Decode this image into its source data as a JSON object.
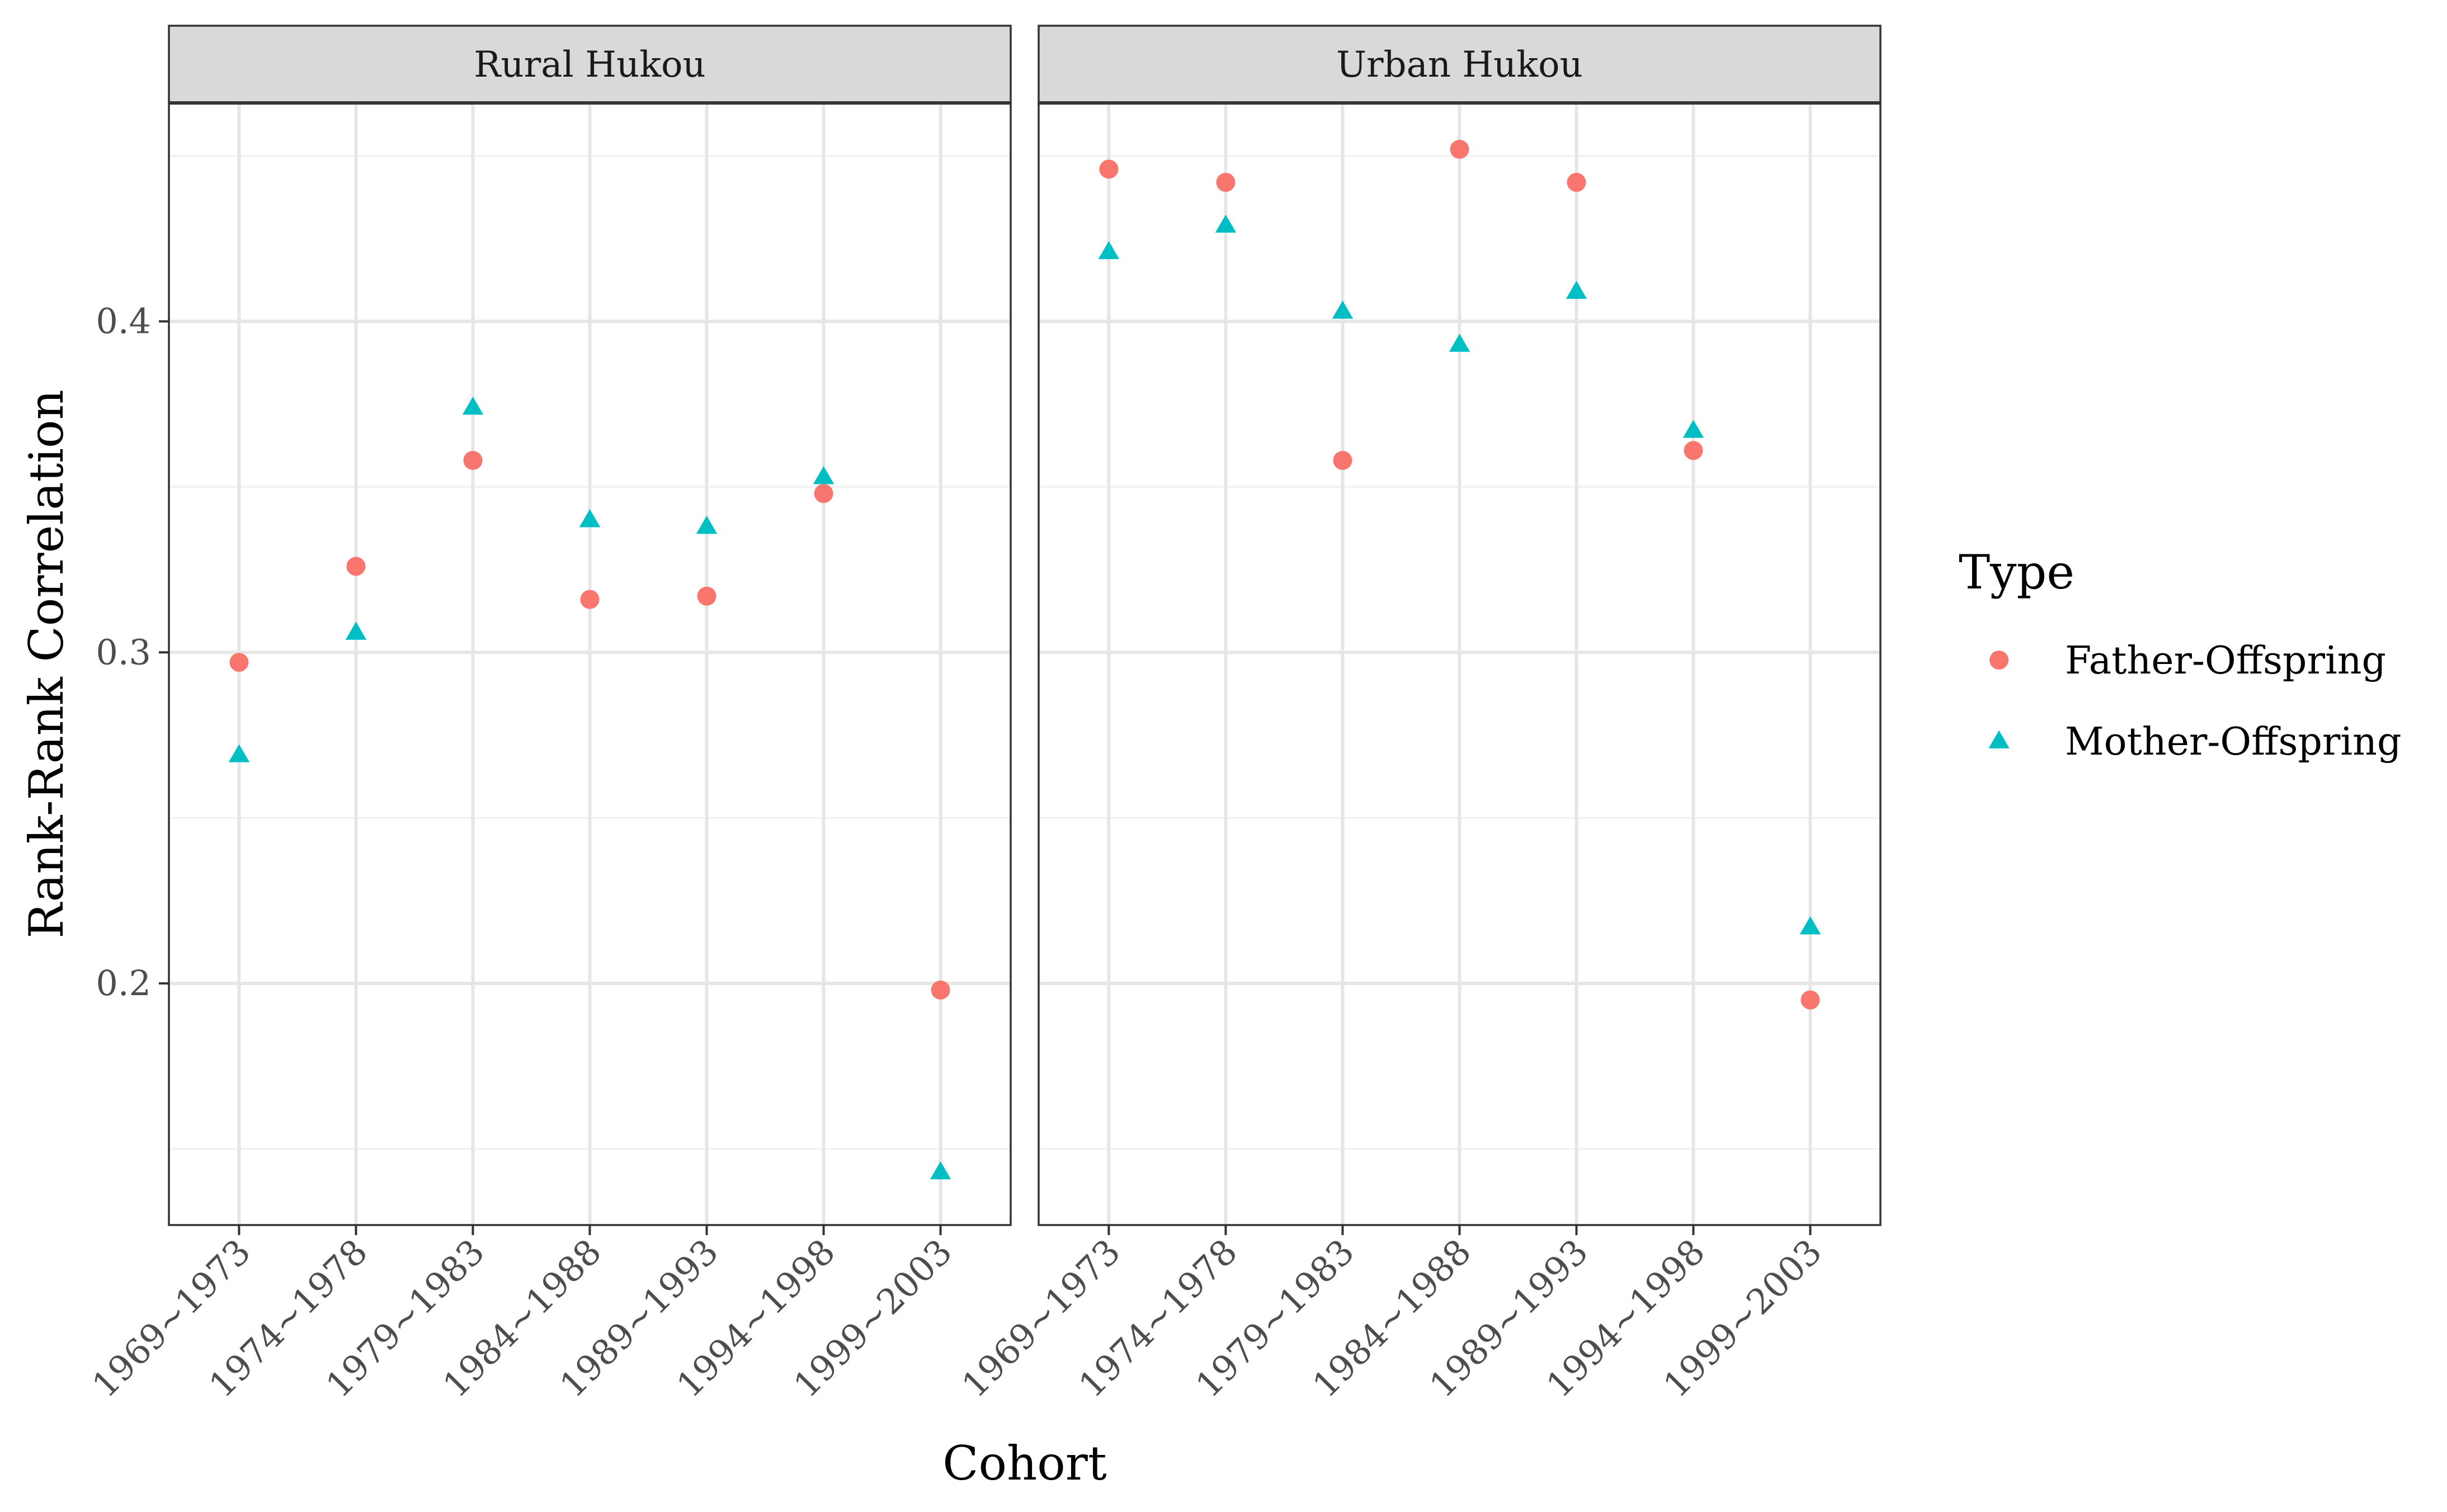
{
  "chart_data": {
    "type": "scatter",
    "facets": [
      "Rural Hukou",
      "Urban Hukou"
    ],
    "categories": [
      "1969~1973",
      "1974~1978",
      "1979~1983",
      "1984~1988",
      "1989~1993",
      "1994~1998",
      "1999~2003"
    ],
    "xlabel": "Cohort",
    "ylabel": "Rank-Rank Correlation",
    "ylim": [
      0.127,
      0.466
    ],
    "yticks": [
      0.2,
      0.3,
      0.4
    ],
    "ytick_labels": [
      "0.2",
      "0.3",
      "0.4"
    ],
    "y_minor_ticks": [
      0.15,
      0.25,
      0.35,
      0.45
    ],
    "grid": true,
    "legend": {
      "title": "Type",
      "position": "right"
    },
    "series": [
      {
        "name": "Father-Offspring",
        "shape": "circle",
        "color": "#F8766D",
        "values": {
          "Rural Hukou": [
            0.297,
            0.326,
            0.358,
            0.316,
            0.317,
            0.348,
            0.198
          ],
          "Urban Hukou": [
            0.446,
            0.442,
            0.358,
            0.452,
            0.442,
            0.361,
            0.195
          ]
        }
      },
      {
        "name": "Mother-Offspring",
        "shape": "triangle",
        "color": "#00BFC4",
        "values": {
          "Rural Hukou": [
            0.269,
            0.306,
            0.374,
            0.34,
            0.338,
            0.353,
            0.143
          ],
          "Urban Hukou": [
            0.421,
            0.429,
            0.403,
            0.393,
            0.409,
            0.367,
            0.217
          ]
        }
      }
    ]
  }
}
